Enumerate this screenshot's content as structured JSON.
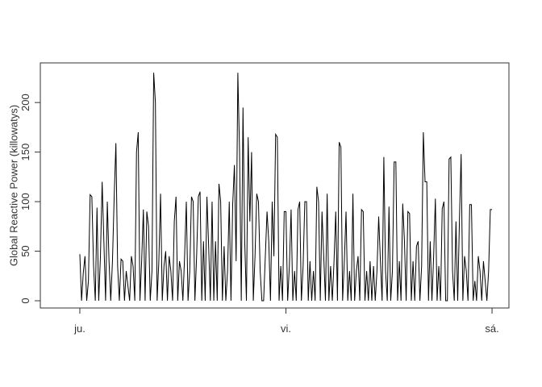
{
  "chart_data": {
    "type": "line",
    "ylabel": "Global Reactive Power (killowatys)",
    "color": "#000000",
    "x": [
      0,
      12,
      24,
      36,
      48,
      60,
      72,
      84,
      96,
      108,
      120,
      132,
      144,
      156,
      168,
      180,
      192,
      204,
      216,
      228,
      240,
      252,
      264,
      276,
      288,
      300,
      312,
      324,
      336,
      348,
      360,
      372,
      384,
      396,
      408,
      420,
      432,
      444,
      456,
      468,
      480,
      492,
      504,
      516,
      528,
      540,
      552,
      564,
      576,
      588,
      600,
      612,
      624,
      636,
      648,
      660,
      672,
      684,
      696,
      708,
      720,
      732,
      744,
      756,
      768,
      780,
      792,
      804,
      816,
      828,
      840,
      852,
      864,
      876,
      888,
      900,
      912,
      924,
      936,
      948,
      960,
      972,
      984,
      996,
      1008,
      1020,
      1032,
      1044,
      1056,
      1068,
      1080,
      1092,
      1104,
      1116,
      1128,
      1140,
      1152,
      1164,
      1176,
      1188,
      1200,
      1212,
      1224,
      1236,
      1248,
      1260,
      1272,
      1284,
      1296,
      1308,
      1320,
      1332,
      1344,
      1356,
      1368,
      1380,
      1392,
      1404,
      1416,
      1428,
      1440,
      1452,
      1464,
      1476,
      1488,
      1500,
      1512,
      1524,
      1536,
      1548,
      1560,
      1572,
      1584,
      1596,
      1608,
      1620,
      1632,
      1644,
      1656,
      1668,
      1680,
      1692,
      1704,
      1716,
      1728,
      1740,
      1752,
      1764,
      1776,
      1788,
      1800,
      1812,
      1824,
      1836,
      1848,
      1860,
      1872,
      1884,
      1896,
      1908,
      1920,
      1932,
      1944,
      1956,
      1968,
      1980,
      1992,
      2004,
      2016,
      2028,
      2040,
      2052,
      2064,
      2076,
      2088,
      2100,
      2112,
      2124,
      2136,
      2148,
      2160,
      2172,
      2184,
      2196,
      2208,
      2220,
      2232,
      2244,
      2256,
      2268,
      2280,
      2292,
      2304,
      2316,
      2328,
      2340,
      2352,
      2364,
      2376,
      2388,
      2400,
      2412,
      2424,
      2436,
      2448,
      2460,
      2472,
      2484,
      2496,
      2508,
      2520,
      2532,
      2544,
      2556,
      2568,
      2580,
      2592,
      2604,
      2616,
      2628,
      2640,
      2652,
      2664,
      2676,
      2688,
      2700,
      2712,
      2724,
      2736,
      2748,
      2760,
      2772,
      2784,
      2796,
      2808,
      2820,
      2832,
      2844,
      2856,
      2868,
      2880
    ],
    "values": [
      47,
      0,
      28,
      45,
      0,
      20,
      107,
      105,
      35,
      0,
      94,
      0,
      45,
      120,
      60,
      0,
      100,
      40,
      0,
      40,
      105,
      159,
      35,
      0,
      42,
      40,
      0,
      30,
      15,
      0,
      45,
      35,
      0,
      150,
      170,
      0,
      40,
      92,
      0,
      90,
      75,
      0,
      30,
      230,
      200,
      0,
      40,
      108,
      0,
      35,
      50,
      0,
      45,
      30,
      0,
      80,
      105,
      0,
      40,
      30,
      0,
      45,
      100,
      0,
      30,
      105,
      100,
      0,
      45,
      105,
      110,
      0,
      60,
      0,
      105,
      55,
      0,
      100,
      0,
      60,
      0,
      118,
      100,
      0,
      55,
      0,
      30,
      100,
      0,
      97,
      137,
      40,
      230,
      150,
      0,
      195,
      60,
      0,
      165,
      80,
      150,
      0,
      45,
      108,
      100,
      30,
      0,
      0,
      45,
      90,
      60,
      0,
      100,
      45,
      168,
      165,
      0,
      35,
      0,
      90,
      90,
      0,
      35,
      92,
      0,
      30,
      0,
      92,
      100,
      0,
      35,
      100,
      100,
      0,
      40,
      0,
      30,
      0,
      115,
      100,
      0,
      90,
      45,
      0,
      108,
      0,
      35,
      0,
      40,
      90,
      0,
      160,
      155,
      0,
      40,
      90,
      0,
      30,
      0,
      108,
      0,
      30,
      45,
      0,
      92,
      90,
      0,
      30,
      0,
      40,
      0,
      35,
      0,
      30,
      85,
      40,
      0,
      145,
      30,
      0,
      95,
      0,
      30,
      140,
      140,
      0,
      40,
      0,
      98,
      60,
      0,
      90,
      88,
      0,
      40,
      0,
      55,
      60,
      0,
      35,
      170,
      120,
      120,
      0,
      60,
      0,
      45,
      103,
      0,
      35,
      0,
      93,
      100,
      0,
      0,
      143,
      145,
      30,
      0,
      80,
      0,
      80,
      148,
      0,
      45,
      30,
      0,
      97,
      97,
      0,
      20,
      0,
      45,
      30,
      0,
      40,
      20,
      0,
      30,
      92,
      92
    ],
    "xlim": [
      -276,
      2998
    ],
    "ylim": [
      -7.3,
      240
    ],
    "xticks": [
      {
        "value": 0,
        "label": "ju."
      },
      {
        "value": 1440,
        "label": "vi."
      },
      {
        "value": 2880,
        "label": "sá."
      }
    ],
    "yticks": [
      0,
      50,
      100,
      150,
      200
    ]
  }
}
